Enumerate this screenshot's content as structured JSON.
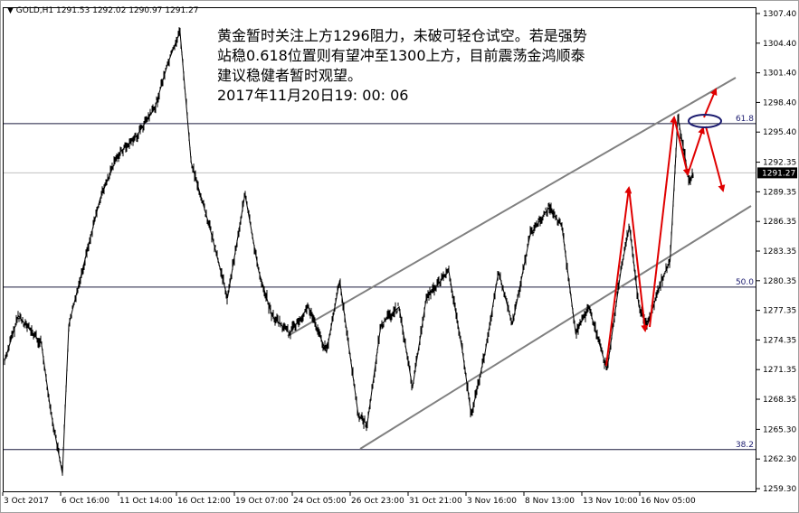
{
  "header": {
    "arrow_icon": "triangle-down-icon",
    "symbol": "GOLD,H1",
    "ohlc": "1291.53 1292.02 1290.97 1291.27"
  },
  "note": {
    "lines": [
      "黄金暂时关注上方1296阻力，未破可轻仓试空。若是强势",
      "站稳0.618位置则有望冲至1300上方，目前震荡金鸿顺泰",
      "建议稳健者暂时观望。",
      "2017年11月20日19: 00: 06"
    ]
  },
  "colors": {
    "price": "#000000",
    "trendline": "#808080",
    "arrows": "#e00000",
    "ellipse": "#1a1a6e",
    "fib": "#1a1a6e",
    "current_price_bg": "#000000"
  },
  "chart_data": {
    "type": "line",
    "title": "GOLD,H1",
    "ylim": [
      1259.3,
      1307.4
    ],
    "y_ticks": [
      "1307.40",
      "1304.40",
      "1301.40",
      "1298.40",
      "1295.40",
      "1292.35",
      "1289.35",
      "1286.35",
      "1283.35",
      "1280.35",
      "1277.35",
      "1274.35",
      "1271.35",
      "1268.35",
      "1265.30",
      "1262.30",
      "1259.30"
    ],
    "x_ticks": [
      {
        "label": "3 Oct 2017",
        "t": "2017-10-03 00:00"
      },
      {
        "label": "6 Oct 16:00",
        "t": "2017-10-06 16:00"
      },
      {
        "label": "11 Oct 14:00",
        "t": "2017-10-11 14:00"
      },
      {
        "label": "16 Oct 12:00",
        "t": "2017-10-16 12:00"
      },
      {
        "label": "19 Oct 07:00",
        "t": "2017-10-19 07:00"
      },
      {
        "label": "24 Oct 05:00",
        "t": "2017-10-24 05:00"
      },
      {
        "label": "26 Oct 23:00",
        "t": "2017-10-26 23:00"
      },
      {
        "label": "31 Oct 21:00",
        "t": "2017-10-31 21:00"
      },
      {
        "label": "3 Nov 16:00",
        "t": "2017-11-03 16:00"
      },
      {
        "label": "8 Nov 13:00",
        "t": "2017-11-08 13:00"
      },
      {
        "label": "13 Nov 10:00",
        "t": "2017-11-13 10:00"
      },
      {
        "label": "16 Nov 05:00",
        "t": "2017-11-16 05:00"
      }
    ],
    "current_price": "1291.27",
    "fib_levels": [
      {
        "label": "61.8",
        "price": 1296.25
      },
      {
        "label": "50.0",
        "price": 1279.7
      },
      {
        "label": "38.2",
        "price": 1263.25
      }
    ],
    "series": [
      {
        "points": [
          [
            "2017-10-03 00:00",
            1272.2
          ],
          [
            "2017-10-03 21:00",
            1276.8
          ],
          [
            "2017-10-05 08:00",
            1274.0
          ],
          [
            "2017-10-05 22:00",
            1267.2
          ],
          [
            "2017-10-06 16:00",
            1260.8
          ],
          [
            "2017-10-07 05:00",
            1275.9
          ],
          [
            "2017-10-08 08:00",
            1281.3
          ],
          [
            "2017-10-09 21:00",
            1288.7
          ],
          [
            "2017-10-11 10:00",
            1293.2
          ],
          [
            "2017-10-12 23:00",
            1295.0
          ],
          [
            "2017-10-14 12:00",
            1297.8
          ],
          [
            "2017-10-15 15:00",
            1302.4
          ],
          [
            "2017-10-16 14:00",
            1305.6
          ],
          [
            "2017-10-17 03:00",
            1292.3
          ],
          [
            "2017-10-18 00:00",
            1285.9
          ],
          [
            "2017-10-18 21:00",
            1278.6
          ],
          [
            "2017-10-20 01:00",
            1289.1
          ],
          [
            "2017-10-21 05:00",
            1281.3
          ],
          [
            "2017-10-22 08:00",
            1276.8
          ],
          [
            "2017-10-23 20:00",
            1275.0
          ],
          [
            "2017-10-24 21:00",
            1277.7
          ],
          [
            "2017-10-25 18:00",
            1273.1
          ],
          [
            "2017-10-26 09:00",
            1280.4
          ],
          [
            "2017-10-27 12:00",
            1266.7
          ],
          [
            "2017-10-28 06:00",
            1265.8
          ],
          [
            "2017-10-29 10:00",
            1275.9
          ],
          [
            "2017-10-30 23:00",
            1277.7
          ],
          [
            "2017-11-01 00:00",
            1269.5
          ],
          [
            "2017-11-01 16:00",
            1278.6
          ],
          [
            "2017-11-02 18:00",
            1281.3
          ],
          [
            "2017-11-03 10:00",
            1273.1
          ],
          [
            "2017-11-03 23:00",
            1266.7
          ],
          [
            "2017-11-05 03:00",
            1273.1
          ],
          [
            "2017-11-06 06:00",
            1281.3
          ],
          [
            "2017-11-07 10:00",
            1275.9
          ],
          [
            "2017-11-08 22:00",
            1285.0
          ],
          [
            "2017-11-10 11:00",
            1287.7
          ],
          [
            "2017-11-11 14:00",
            1285.9
          ],
          [
            "2017-11-12 18:00",
            1275.0
          ],
          [
            "2017-11-13 16:00",
            1277.7
          ],
          [
            "2017-11-14 13:00",
            1271.3
          ],
          [
            "2017-11-15 05:00",
            1281.3
          ],
          [
            "2017-11-15 15:00",
            1285.9
          ],
          [
            "2017-11-16 02:00",
            1277.7
          ],
          [
            "2017-11-16 12:00",
            1275.9
          ],
          [
            "2017-11-17 04:00",
            1280.4
          ],
          [
            "2017-11-17 14:00",
            1282.3
          ],
          [
            "2017-11-17 23:00",
            1296.9
          ],
          [
            "2017-11-18 12:00",
            1290.5
          ],
          [
            "2017-11-18 17:00",
            1291.27
          ]
        ]
      }
    ]
  }
}
